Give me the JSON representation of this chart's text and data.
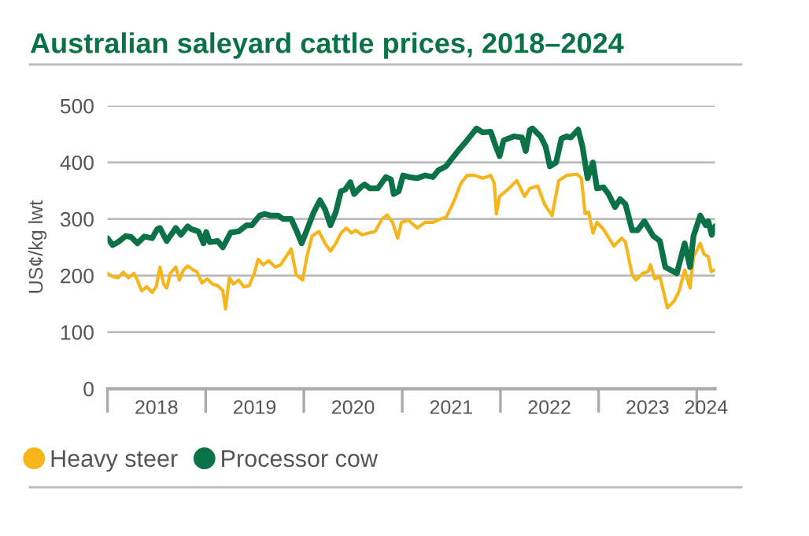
{
  "chart_data": {
    "type": "line",
    "title": "Australian saleyard cattle prices, 2018–2024",
    "ylabel": "US¢/kg lwt",
    "xlim": [
      "2018-01-01",
      "2024-03-09"
    ],
    "xticks": [
      {
        "value": "2018-01-01",
        "label": null
      },
      {
        "value": "2018-07-02",
        "label": "2018"
      },
      {
        "value": "2019-01-01",
        "label": null
      },
      {
        "value": "2019-07-02",
        "label": "2019"
      },
      {
        "value": "2020-01-01",
        "label": null
      },
      {
        "value": "2020-07-02",
        "label": "2020"
      },
      {
        "value": "2021-01-01",
        "label": null
      },
      {
        "value": "2021-07-02",
        "label": "2021"
      },
      {
        "value": "2022-01-01",
        "label": null
      },
      {
        "value": "2022-07-02",
        "label": "2022"
      },
      {
        "value": "2023-01-01",
        "label": null
      },
      {
        "value": "2023-07-02",
        "label": "2023"
      },
      {
        "value": "2024-01-01",
        "label": null
      },
      {
        "value": "2024-02-05",
        "label": "2024"
      }
    ],
    "ylim": [
      0,
      500
    ],
    "yticks": [
      0,
      100,
      200,
      300,
      400,
      500
    ],
    "grid": "y",
    "legend": "bottom left",
    "series": [
      {
        "name": "Heavy steer",
        "color": "#f6b51b",
        "x": [
          "2018-01-01",
          "2018-01-20",
          "2018-02-09",
          "2018-03-01",
          "2018-03-20",
          "2018-04-09",
          "2018-04-22",
          "2018-05-08",
          "2018-05-27",
          "2018-06-16",
          "2018-07-01",
          "2018-07-15",
          "2018-07-29",
          "2018-08-09",
          "2018-08-23",
          "2018-09-12",
          "2018-09-25",
          "2018-10-11",
          "2018-10-26",
          "2018-11-15",
          "2018-11-29",
          "2018-12-18",
          "2019-01-07",
          "2019-01-26",
          "2019-02-15",
          "2019-03-06",
          "2019-03-16",
          "2019-03-30",
          "2019-04-14",
          "2019-05-04",
          "2019-05-23",
          "2019-06-12",
          "2019-07-01",
          "2019-07-15",
          "2019-08-03",
          "2019-08-23",
          "2019-09-17",
          "2019-10-07",
          "2019-10-26",
          "2019-11-15",
          "2019-12-04",
          "2019-12-28",
          "2020-01-12",
          "2020-02-01",
          "2020-02-26",
          "2020-03-20",
          "2020-04-09",
          "2020-04-29",
          "2020-05-18",
          "2020-06-07",
          "2020-06-26",
          "2020-07-12",
          "2020-08-04",
          "2020-08-28",
          "2020-09-22",
          "2020-10-18",
          "2020-11-06",
          "2020-11-26",
          "2020-12-15",
          "2020-12-29",
          "2021-01-23",
          "2021-02-26",
          "2021-03-27",
          "2021-04-25",
          "2021-05-24",
          "2021-06-13",
          "2021-07-12",
          "2021-08-07",
          "2021-08-30",
          "2021-09-28",
          "2021-10-27",
          "2021-11-26",
          "2021-12-09",
          "2021-12-17",
          "2021-12-29",
          "2022-02-02",
          "2022-03-03",
          "2022-04-01",
          "2022-04-20",
          "2022-05-20",
          "2022-06-14",
          "2022-07-12",
          "2022-08-06",
          "2022-09-04",
          "2022-10-13",
          "2022-10-29",
          "2022-11-12",
          "2022-11-25",
          "2022-12-11",
          "2022-12-26",
          "2023-01-19",
          "2023-02-27",
          "2023-03-28",
          "2023-04-11",
          "2023-05-06",
          "2023-05-20",
          "2023-06-14",
          "2023-07-04",
          "2023-07-13",
          "2023-07-29",
          "2023-08-17",
          "2023-09-14",
          "2023-10-09",
          "2023-10-28",
          "2023-11-17",
          "2023-12-07",
          "2023-12-20",
          "2024-01-14",
          "2024-01-28",
          "2024-02-13",
          "2024-02-24",
          "2024-03-09"
        ],
        "values": [
          204,
          198,
          196,
          206,
          196,
          204,
          192,
          173,
          180,
          170,
          180,
          215,
          185,
          178,
          204,
          215,
          192,
          210,
          217,
          210,
          207,
          187,
          194,
          185,
          182,
          173,
          141,
          196,
          185,
          192,
          180,
          182,
          204,
          229,
          219,
          226,
          215,
          219,
          233,
          247,
          201,
          192,
          233,
          270,
          278,
          257,
          243,
          257,
          275,
          284,
          275,
          280,
          272,
          275,
          278,
          300,
          307,
          294,
          266,
          294,
          298,
          284,
          294,
          294,
          300,
          303,
          331,
          363,
          377,
          377,
          372,
          377,
          363,
          309,
          340,
          354,
          368,
          340,
          354,
          358,
          326,
          306,
          368,
          377,
          379,
          372,
          309,
          312,
          275,
          294,
          282,
          252,
          266,
          259,
          201,
          192,
          204,
          207,
          219,
          194,
          198,
          143,
          155,
          173,
          210,
          178,
          233,
          257,
          238,
          233,
          207,
          210
        ]
      },
      {
        "name": "Processor cow",
        "color": "#0b7248",
        "x": [
          "2018-01-01",
          "2018-01-20",
          "2018-02-09",
          "2018-03-10",
          "2018-03-30",
          "2018-04-22",
          "2018-05-18",
          "2018-06-16",
          "2018-07-05",
          "2018-07-15",
          "2018-08-09",
          "2018-09-12",
          "2018-10-01",
          "2018-10-26",
          "2018-11-09",
          "2018-12-05",
          "2018-12-24",
          "2019-01-03",
          "2019-01-16",
          "2019-02-15",
          "2019-03-06",
          "2019-04-04",
          "2019-05-04",
          "2019-06-02",
          "2019-06-22",
          "2019-07-21",
          "2019-08-09",
          "2019-08-29",
          "2019-09-27",
          "2019-10-16",
          "2019-11-15",
          "2019-12-04",
          "2019-12-24",
          "2020-01-12",
          "2020-02-07",
          "2020-03-01",
          "2020-03-20",
          "2020-04-09",
          "2020-04-29",
          "2020-05-18",
          "2020-06-03",
          "2020-06-22",
          "2020-07-06",
          "2020-07-26",
          "2020-08-14",
          "2020-09-03",
          "2020-10-02",
          "2020-11-01",
          "2020-11-20",
          "2020-11-30",
          "2020-12-19",
          "2021-01-04",
          "2021-01-27",
          "2021-02-26",
          "2021-03-27",
          "2021-04-25",
          "2021-05-15",
          "2021-06-13",
          "2021-07-02",
          "2021-08-01",
          "2021-08-30",
          "2021-10-04",
          "2021-10-27",
          "2021-11-26",
          "2021-12-15",
          "2021-12-29",
          "2022-01-13",
          "2022-02-21",
          "2022-03-22",
          "2022-04-05",
          "2022-04-20",
          "2022-04-30",
          "2022-05-30",
          "2022-06-18",
          "2022-07-04",
          "2022-07-27",
          "2022-08-16",
          "2022-09-04",
          "2022-09-20",
          "2022-10-17",
          "2022-11-02",
          "2022-11-21",
          "2022-12-11",
          "2022-12-26",
          "2023-01-19",
          "2023-02-07",
          "2023-03-03",
          "2023-03-22",
          "2023-04-11",
          "2023-05-06",
          "2023-05-26",
          "2023-06-20",
          "2023-07-23",
          "2023-08-17",
          "2023-09-06",
          "2023-09-25",
          "2023-10-19",
          "2023-11-17",
          "2023-12-07",
          "2023-12-20",
          "2024-01-14",
          "2024-02-03",
          "2024-02-13",
          "2024-02-26",
          "2024-03-09"
        ],
        "values": [
          266,
          254,
          259,
          270,
          268,
          257,
          269,
          266,
          282,
          284,
          261,
          284,
          272,
          287,
          282,
          278,
          257,
          277,
          259,
          261,
          250,
          276,
          278,
          289,
          289,
          306,
          309,
          306,
          306,
          300,
          300,
          280,
          257,
          280,
          312,
          333,
          317,
          289,
          312,
          349,
          352,
          365,
          344,
          354,
          361,
          354,
          354,
          374,
          370,
          344,
          349,
          377,
          374,
          372,
          377,
          374,
          386,
          393,
          405,
          423,
          439,
          460,
          453,
          454,
          428,
          411,
          439,
          446,
          444,
          420,
          457,
          460,
          446,
          428,
          393,
          400,
          442,
          446,
          444,
          458,
          428,
          372,
          400,
          354,
          356,
          344,
          321,
          335,
          326,
          280,
          280,
          296,
          270,
          261,
          215,
          210,
          204,
          257,
          215,
          270,
          306,
          289,
          296,
          272,
          287
        ]
      }
    ]
  }
}
